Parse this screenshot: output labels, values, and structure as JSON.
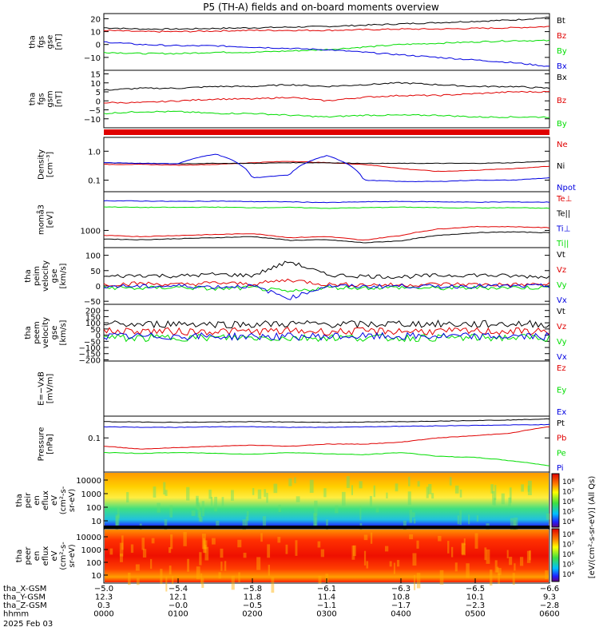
{
  "title": "P5 (TH-A) fields and on-board moments overview",
  "colors": {
    "black": "#000000",
    "red": "#e00000",
    "green": "#00dd00",
    "blue": "#0000e0",
    "axis": "#000000"
  },
  "chart_data": [
    {
      "type": "line",
      "panel": "fgs-dsl",
      "ylabel": [
        "tha",
        "fgs",
        "gse",
        "[nT]"
      ],
      "ylim": [
        -20,
        24
      ],
      "yticks": [
        "20",
        "10",
        "0",
        "−10"
      ],
      "series": [
        {
          "name": "Bt",
          "color": "black",
          "x": [
            0,
            0.5,
            1,
            1.5,
            2,
            2.5,
            3,
            3.5,
            4,
            4.5,
            5,
            5.5,
            6
          ],
          "values": [
            13,
            12,
            12,
            12.5,
            13,
            13.5,
            14,
            15,
            16,
            17,
            18,
            19,
            21
          ]
        },
        {
          "name": "Bz",
          "color": "red",
          "x": [
            0,
            0.5,
            1,
            1.5,
            2,
            2.5,
            3,
            3.5,
            4,
            4.5,
            5,
            5.5,
            6
          ],
          "values": [
            11,
            10,
            10,
            10.5,
            11,
            11,
            11,
            11.5,
            12,
            12,
            12.5,
            13,
            14
          ]
        },
        {
          "name": "By",
          "color": "green",
          "x": [
            0,
            0.5,
            1,
            1.5,
            2,
            2.5,
            3,
            3.5,
            4,
            4.5,
            5,
            5.5,
            6
          ],
          "values": [
            -6,
            -7,
            -7,
            -6,
            -6,
            -5,
            -4,
            -2,
            0,
            1,
            2,
            3,
            3
          ]
        },
        {
          "name": "Bx",
          "color": "blue",
          "x": [
            0,
            0.5,
            1,
            1.5,
            2,
            2.5,
            3,
            3.5,
            4,
            4.5,
            5,
            5.5,
            6
          ],
          "values": [
            2,
            0,
            -1,
            -1,
            -2,
            -3,
            -4,
            -6,
            -8,
            -10,
            -12,
            -14,
            -17
          ]
        }
      ]
    },
    {
      "type": "line",
      "panel": "fgs-gsm",
      "ylabel": [
        "tha",
        "fgs",
        "gsm",
        "[nT]"
      ],
      "ylim": [
        -15,
        17
      ],
      "yticks": [
        "15",
        "10",
        "5",
        "0",
        "−5",
        "−10"
      ],
      "series": [
        {
          "name": "Bx",
          "color": "black",
          "x": [
            0,
            0.5,
            1,
            1.5,
            2,
            2.5,
            3,
            3.5,
            4,
            4.5,
            5,
            5.5,
            6
          ],
          "values": [
            6,
            7,
            7,
            8,
            8,
            9,
            8,
            9,
            10,
            9,
            8,
            8,
            7
          ]
        },
        {
          "name": "Bz",
          "color": "red",
          "x": [
            0,
            0.5,
            1,
            1.5,
            2,
            2.5,
            3,
            3.5,
            4,
            4.5,
            5,
            5.5,
            6
          ],
          "values": [
            -1,
            -1,
            0,
            1,
            1,
            2,
            0,
            2,
            3,
            3,
            4,
            5,
            5
          ]
        },
        {
          "name": "By",
          "color": "green",
          "x": [
            0,
            0.5,
            1,
            1.5,
            2,
            2.5,
            3,
            3.5,
            4,
            4.5,
            5,
            5.5,
            6
          ],
          "values": [
            -7,
            -6,
            -6,
            -7,
            -7,
            -8,
            -9,
            -8,
            -8,
            -8,
            -9,
            -9,
            -9
          ]
        }
      ]
    },
    {
      "type": "line",
      "panel": "density",
      "scale": "log",
      "ylabel": [
        "Density",
        "[cm⁻³]"
      ],
      "ylim": [
        0.04,
        3
      ],
      "yticks": [
        "1.0",
        "0.1"
      ],
      "series": [
        {
          "name": "Ne",
          "color": "red",
          "x": [
            0,
            0.5,
            1,
            1.5,
            2,
            2.5,
            3,
            3.5,
            4,
            4.5,
            5,
            5.5,
            6
          ],
          "values": [
            0.35,
            0.35,
            0.33,
            0.35,
            0.4,
            0.45,
            0.4,
            0.35,
            0.25,
            0.2,
            0.22,
            0.25,
            0.3
          ]
        },
        {
          "name": "Ni",
          "color": "black",
          "x": [
            0,
            0.5,
            1,
            1.5,
            2,
            2.5,
            3,
            3.5,
            4,
            4.5,
            5,
            5.5,
            6
          ],
          "values": [
            0.4,
            0.38,
            0.37,
            0.38,
            0.38,
            0.4,
            0.4,
            0.38,
            0.38,
            0.38,
            0.38,
            0.4,
            0.45
          ]
        },
        {
          "name": "Npot",
          "color": "blue",
          "x": [
            0,
            0.5,
            1,
            1.5,
            2,
            2.5,
            3,
            3.5,
            4,
            4.5,
            5,
            5.5,
            6
          ],
          "values": [
            0.4,
            0.38,
            0.37,
            0.8,
            0.12,
            0.15,
            0.7,
            0.1,
            0.09,
            0.09,
            0.1,
            0.1,
            0.12
          ]
        }
      ]
    },
    {
      "type": "line",
      "panel": "temperature",
      "scale": "log",
      "ylabel": [
        "momå3",
        "[eV]"
      ],
      "ylim": [
        300,
        15000
      ],
      "yticks": [
        "1000"
      ],
      "series": [
        {
          "name": "Te⊥",
          "color": "red",
          "x": [
            0,
            0.5,
            1,
            1.5,
            2,
            2.5,
            3,
            3.5,
            4,
            4.5,
            5,
            5.5,
            6
          ],
          "values": [
            700,
            650,
            700,
            750,
            800,
            600,
            650,
            500,
            700,
            1100,
            1300,
            1300,
            1200
          ]
        },
        {
          "name": "Te||",
          "color": "black",
          "x": [
            0,
            0.5,
            1,
            1.5,
            2,
            2.5,
            3,
            3.5,
            4,
            4.5,
            5,
            5.5,
            6
          ],
          "values": [
            550,
            520,
            560,
            600,
            650,
            500,
            520,
            420,
            480,
            700,
            850,
            900,
            850
          ]
        },
        {
          "name": "Ti⊥",
          "color": "blue",
          "x": [
            0,
            0.5,
            1,
            1.5,
            2,
            2.5,
            3,
            3.5,
            4,
            4.5,
            5,
            5.5,
            6
          ],
          "values": [
            8000,
            7800,
            7600,
            7800,
            7500,
            7400,
            7000,
            7400,
            7600,
            7400,
            7200,
            7300,
            7200
          ]
        },
        {
          "name": "Ti||",
          "color": "green",
          "x": [
            0,
            0.5,
            1,
            1.5,
            2,
            2.5,
            3,
            3.5,
            4,
            4.5,
            5,
            5.5,
            6
          ],
          "values": [
            5200,
            5000,
            5000,
            5100,
            4900,
            5000,
            4700,
            4900,
            5100,
            4900,
            4800,
            4900,
            4700
          ]
        }
      ]
    },
    {
      "type": "line",
      "panel": "peim-velocity",
      "ylabel": [
        "tha",
        "peim",
        "velocity",
        "gse",
        "[km/s]"
      ],
      "ylim": [
        -60,
        125
      ],
      "yticks": [
        "100",
        "50",
        "0",
        "−50"
      ],
      "series": [
        {
          "name": "Vt",
          "color": "black",
          "x": [
            0,
            0.5,
            1,
            1.5,
            2,
            2.5,
            3,
            3.5,
            4,
            4.5,
            5,
            5.5,
            6
          ],
          "values": [
            30,
            35,
            32,
            38,
            34,
            80,
            36,
            32,
            30,
            34,
            36,
            32,
            30
          ]
        },
        {
          "name": "Vz",
          "color": "red",
          "x": [
            0,
            0.5,
            1,
            1.5,
            2,
            2.5,
            3,
            3.5,
            4,
            4.5,
            5,
            5.5,
            6
          ],
          "values": [
            5,
            8,
            4,
            10,
            6,
            20,
            5,
            4,
            3,
            6,
            5,
            4,
            5
          ]
        },
        {
          "name": "Vy",
          "color": "green",
          "x": [
            0,
            0.5,
            1,
            1.5,
            2,
            2.5,
            3,
            3.5,
            4,
            4.5,
            5,
            5.5,
            6
          ],
          "values": [
            -5,
            -8,
            -4,
            -10,
            -6,
            -20,
            -5,
            -6,
            -5,
            -8,
            -6,
            -5,
            -6
          ]
        },
        {
          "name": "Vx",
          "color": "blue",
          "x": [
            0,
            0.5,
            1,
            1.5,
            2,
            2.5,
            3,
            3.5,
            4,
            4.5,
            5,
            5.5,
            6
          ],
          "values": [
            0,
            -2,
            0,
            -3,
            0,
            -40,
            0,
            -2,
            0,
            -2,
            0,
            -1,
            0
          ]
        }
      ]
    },
    {
      "type": "line",
      "panel": "peem-velocity",
      "ylabel": [
        "tha",
        "peem",
        "velocity",
        "gse",
        "[km/s]"
      ],
      "ylim": [
        -210,
        250
      ],
      "yticks": [
        "200",
        "150",
        "100",
        "50",
        "0",
        "−50",
        "−100",
        "−150",
        "−200"
      ],
      "series": [
        {
          "name": "Vt",
          "color": "black",
          "x": [
            0,
            0.5,
            1,
            1.5,
            2,
            2.5,
            3,
            3.5,
            4,
            4.5,
            5,
            5.5,
            6
          ],
          "values": [
            90,
            85,
            95,
            90,
            88,
            92,
            90,
            86,
            94,
            90,
            88,
            92,
            90
          ]
        },
        {
          "name": "Vz",
          "color": "red",
          "x": [
            0,
            0.5,
            1,
            1.5,
            2,
            2.5,
            3,
            3.5,
            4,
            4.5,
            5,
            5.5,
            6
          ],
          "values": [
            30,
            35,
            28,
            32,
            30,
            34,
            29,
            31,
            33,
            30,
            32,
            30,
            31
          ]
        },
        {
          "name": "Vy",
          "color": "green",
          "x": [
            0,
            0.5,
            1,
            1.5,
            2,
            2.5,
            3,
            3.5,
            4,
            4.5,
            5,
            5.5,
            6
          ],
          "values": [
            -20,
            -25,
            -18,
            -22,
            -20,
            -24,
            -19,
            -21,
            -23,
            -20,
            -22,
            -20,
            -21
          ]
        },
        {
          "name": "Vx",
          "color": "blue",
          "x": [
            0,
            0.5,
            1,
            1.5,
            2,
            2.5,
            3,
            3.5,
            4,
            4.5,
            5,
            5.5,
            6
          ],
          "values": [
            -10,
            -12,
            -8,
            -11,
            -10,
            -12,
            -9,
            -10,
            -11,
            -10,
            -11,
            -10,
            -10
          ]
        }
      ]
    },
    {
      "type": "line",
      "panel": "efield",
      "ylabel": [
        "E=−VxB",
        "[mV/m]"
      ],
      "ylim": [
        0,
        1
      ],
      "yticks": [],
      "series": [
        {
          "name": "Ez",
          "color": "red",
          "x": [],
          "values": []
        },
        {
          "name": "Ey",
          "color": "green",
          "x": [],
          "values": []
        },
        {
          "name": "Ex",
          "color": "blue",
          "x": [],
          "values": []
        }
      ]
    },
    {
      "type": "line",
      "panel": "pressure",
      "scale": "log",
      "ylabel": [
        "Pressure",
        "[nPa]"
      ],
      "ylim": [
        0.006,
        0.6
      ],
      "yticks": [
        "0.1"
      ],
      "series": [
        {
          "name": "Pt",
          "color": "black",
          "x": [
            0,
            0.5,
            1,
            1.5,
            2,
            2.5,
            3,
            3.5,
            4,
            4.5,
            5,
            5.5,
            6
          ],
          "values": [
            0.38,
            0.37,
            0.36,
            0.37,
            0.38,
            0.37,
            0.36,
            0.37,
            0.38,
            0.4,
            0.42,
            0.44,
            0.48
          ]
        },
        {
          "name": "Pb",
          "color": "red",
          "x": [
            0,
            0.5,
            1,
            1.5,
            2,
            2.5,
            3,
            3.5,
            4,
            4.5,
            5,
            5.5,
            6
          ],
          "values": [
            0.05,
            0.04,
            0.045,
            0.05,
            0.055,
            0.05,
            0.06,
            0.06,
            0.07,
            0.1,
            0.12,
            0.15,
            0.25
          ]
        },
        {
          "name": "Pe",
          "color": "green",
          "x": [
            0,
            0.5,
            1,
            1.5,
            2,
            2.5,
            3,
            3.5,
            4,
            4.5,
            5,
            5.5,
            6
          ],
          "values": [
            0.03,
            0.028,
            0.03,
            0.028,
            0.026,
            0.03,
            0.027,
            0.025,
            0.03,
            0.022,
            0.02,
            0.015,
            0.01
          ]
        },
        {
          "name": "Pi",
          "color": "blue",
          "x": [
            0,
            0.5,
            1,
            1.5,
            2,
            2.5,
            3,
            3.5,
            4,
            4.5,
            5,
            5.5,
            6
          ],
          "values": [
            0.25,
            0.24,
            0.24,
            0.25,
            0.25,
            0.24,
            0.24,
            0.25,
            0.26,
            0.27,
            0.28,
            0.29,
            0.3
          ]
        }
      ]
    },
    {
      "type": "heatmap",
      "panel": "peir-spectrogram",
      "ylabel": [
        "tha",
        "peir",
        "en",
        "eflux",
        "eV",
        "(cm²-s-",
        "sr-eV)"
      ],
      "yticks": [
        "10000",
        "1000",
        "100",
        "10"
      ]
    },
    {
      "type": "heatmap",
      "panel": "peer-spectrogram",
      "ylabel": [
        "tha",
        "peer",
        "en",
        "eflux",
        "eV",
        "(cm²-s-",
        "sr-eV)"
      ],
      "yticks": [
        "10000",
        "1000",
        "100",
        "10"
      ]
    }
  ],
  "colorbar": {
    "label": "[eV/(cm²-s-sr-eV)] (All Qs)",
    "ticks": [
      "10⁸",
      "10⁷",
      "10⁶",
      "10⁵",
      "10⁴",
      "10⁸",
      "10⁷",
      "10⁶",
      "10⁵",
      "10⁴"
    ]
  },
  "xaxis": {
    "ticks": [
      0,
      1,
      2,
      3,
      4,
      5,
      6
    ],
    "rows": [
      {
        "label": "tha_X-GSM",
        "values": [
          "−5.0",
          "−5.4",
          "−5.8",
          "−6.1",
          "−6.3",
          "−6.5",
          "−6.6"
        ]
      },
      {
        "label": "tha_Y-GSM",
        "values": [
          "12.3",
          "12.1",
          "11.8",
          "11.4",
          "10.8",
          "10.1",
          "9.3"
        ]
      },
      {
        "label": "tha_Z-GSM",
        "values": [
          "0.3",
          "−0.0",
          "−0.5",
          "−1.1",
          "−1.7",
          "−2.3",
          "−2.8"
        ]
      },
      {
        "label": "hhmm",
        "values": [
          "0000",
          "0100",
          "0200",
          "0300",
          "0400",
          "0500",
          "0600"
        ]
      }
    ],
    "date": "2025 Feb 03"
  }
}
